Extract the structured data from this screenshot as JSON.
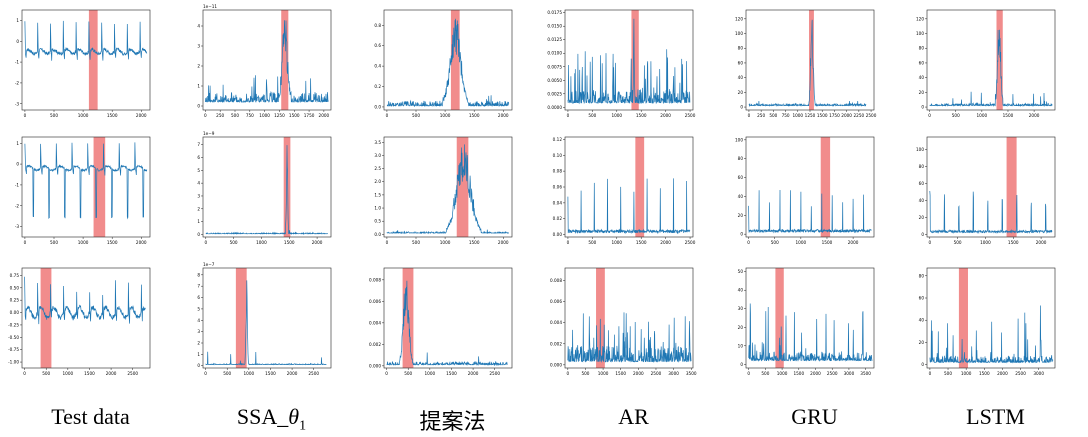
{
  "colors": {
    "line": "#1f77b4",
    "highlight": "#f08080",
    "axes": "#222222"
  },
  "column_labels": [
    "Test data",
    "SSA_θ1",
    "提案法",
    "AR",
    "GRU",
    "LSTM"
  ],
  "chart_data": [
    {
      "type": "line",
      "row": 0,
      "col": 0,
      "ylim": [
        -3.3,
        1.5
      ],
      "xticks": [
        0,
        500,
        1000,
        1500,
        2000
      ],
      "xlim": [
        -50,
        2150
      ],
      "yticks": [
        "1",
        "0",
        "-1",
        "-2",
        "-3"
      ],
      "ytick_values": [
        1,
        0,
        -1,
        -2,
        -3
      ],
      "exp": "",
      "highlight": [
        1100,
        1250
      ],
      "signal": {
        "kind": "ecg",
        "n": 2100,
        "base": -0.5,
        "period": 220,
        "amp": 1.4,
        "noise": 0.08,
        "dip": -0.8
      }
    },
    {
      "type": "line",
      "row": 0,
      "col": 1,
      "ylim": [
        -0.2,
        4.8
      ],
      "xticks": [
        0,
        250,
        500,
        750,
        1000,
        1250,
        1500,
        1750,
        2000
      ],
      "xlim": [
        -40,
        2120
      ],
      "yticks": [
        "4",
        "3",
        "2",
        "1",
        "0"
      ],
      "ytick_values": [
        4,
        3,
        2,
        1,
        0
      ],
      "exp": "1e−11",
      "highlight": [
        1280,
        1400
      ],
      "signal": {
        "kind": "score",
        "n": 2080,
        "base": 0.2,
        "noise": 0.5,
        "spikes": 12,
        "spikeH": 1.2,
        "peakAt": 1340,
        "peakH": 4.6,
        "peakW": 40
      }
    },
    {
      "type": "line",
      "row": 0,
      "col": 2,
      "ylim": [
        -0.03,
        0.95
      ],
      "xticks": [
        0,
        500,
        1000,
        1500,
        2000
      ],
      "xlim": [
        -50,
        2150
      ],
      "yticks": [
        "0.8",
        "0.6",
        "0.4",
        "0.2",
        "0.0"
      ],
      "ytick_values": [
        0.8,
        0.6,
        0.4,
        0.2,
        0.0
      ],
      "exp": "",
      "highlight": [
        1100,
        1250
      ],
      "signal": {
        "kind": "score",
        "n": 2100,
        "base": 0.01,
        "noise": 0.05,
        "spikes": 6,
        "spikeH": 0.1,
        "peakAt": 1180,
        "peakH": 0.9,
        "peakW": 90
      }
    },
    {
      "type": "line",
      "row": 0,
      "col": 3,
      "ylim": [
        -0.0005,
        0.018
      ],
      "xticks": [
        0,
        500,
        1000,
        1500,
        2000,
        2500
      ],
      "xlim": [
        -60,
        2560
      ],
      "yticks": [
        "0.0175",
        "0.0150",
        "0.0125",
        "0.0100",
        "0.0075",
        "0.0050",
        "0.0025",
        "0.0000"
      ],
      "ytick_values": [
        0.0175,
        0.015,
        0.0125,
        0.01,
        0.0075,
        0.005,
        0.0025,
        0
      ],
      "exp": "",
      "highlight": [
        1300,
        1450
      ],
      "signal": {
        "kind": "score",
        "n": 2500,
        "base": 0.0008,
        "noise": 0.0025,
        "spikes": 40,
        "spikeH": 0.009,
        "peakAt": 1350,
        "peakH": 0.016,
        "peakW": 6
      }
    },
    {
      "type": "line",
      "row": 0,
      "col": 4,
      "ylim": [
        -4,
        132
      ],
      "xticks": [
        0,
        250,
        500,
        750,
        1000,
        1250,
        1500,
        1750,
        2000,
        2250,
        2500
      ],
      "xlim": [
        -60,
        2560
      ],
      "yticks": [
        "120",
        "100",
        "80",
        "60",
        "40",
        "20",
        "0"
      ],
      "ytick_values": [
        120,
        100,
        80,
        60,
        40,
        20,
        0
      ],
      "exp": "",
      "highlight": [
        1230,
        1330
      ],
      "signal": {
        "kind": "score",
        "n": 2400,
        "base": 2,
        "noise": 3,
        "spikes": 10,
        "spikeH": 8,
        "peakAt": 1290,
        "peakH": 128,
        "peakW": 25
      }
    },
    {
      "type": "line",
      "row": 0,
      "col": 5,
      "ylim": [
        -4,
        132
      ],
      "xticks": [
        0,
        500,
        1000,
        1500,
        2000
      ],
      "xlim": [
        -50,
        2400
      ],
      "yticks": [
        "120",
        "100",
        "80",
        "60",
        "40",
        "20",
        "0"
      ],
      "ytick_values": [
        120,
        100,
        80,
        60,
        40,
        20,
        0
      ],
      "exp": "",
      "highlight": [
        1280,
        1400
      ],
      "signal": {
        "kind": "score",
        "n": 2350,
        "base": 2,
        "noise": 3,
        "spikes": 10,
        "spikeH": 18,
        "peakAt": 1330,
        "peakH": 128,
        "peakW": 30
      }
    },
    {
      "type": "line",
      "row": 1,
      "col": 0,
      "ylim": [
        -3.5,
        1.3
      ],
      "xticks": [
        0,
        500,
        1000,
        1500,
        2000
      ],
      "xlim": [
        -50,
        2150
      ],
      "yticks": [
        "1",
        "0",
        "-1",
        "-2",
        "-3"
      ],
      "ytick_values": [
        1,
        0,
        -1,
        -2,
        -3
      ],
      "exp": "",
      "highlight": [
        1180,
        1380
      ],
      "signal": {
        "kind": "ecg2",
        "n": 2100,
        "base": -0.2,
        "period": 270,
        "amp": 1.2,
        "noise": 0.05,
        "dip": -3.0
      }
    },
    {
      "type": "line",
      "row": 1,
      "col": 1,
      "ylim": [
        -0.2,
        7.6
      ],
      "xticks": [
        0,
        500,
        1000,
        1500,
        2000
      ],
      "xlim": [
        -50,
        2250
      ],
      "yticks": [
        "7",
        "6",
        "5",
        "4",
        "3",
        "2",
        "1",
        "0"
      ],
      "ytick_values": [
        7,
        6,
        5,
        4,
        3,
        2,
        1,
        0
      ],
      "exp": "1e−9",
      "highlight": [
        1400,
        1520
      ],
      "signal": {
        "kind": "score",
        "n": 2200,
        "base": 0.05,
        "noise": 0.08,
        "spikes": 6,
        "spikeH": 0.4,
        "peakAt": 1460,
        "peakH": 7.0,
        "peakW": 12
      }
    },
    {
      "type": "line",
      "row": 1,
      "col": 2,
      "ylim": [
        -0.1,
        3.7
      ],
      "xticks": [
        0,
        500,
        1000,
        1500,
        2000
      ],
      "xlim": [
        -50,
        2150
      ],
      "yticks": [
        "3.5",
        "3.0",
        "2.5",
        "2.0",
        "1.5",
        "1.0",
        "0.5",
        "0.0"
      ],
      "ytick_values": [
        3.5,
        3.0,
        2.5,
        2.0,
        1.5,
        1.0,
        0.5,
        0.0
      ],
      "exp": "",
      "highlight": [
        1200,
        1400
      ],
      "signal": {
        "kind": "score",
        "n": 2100,
        "base": 0.05,
        "noise": 0.05,
        "spikes": 3,
        "spikeH": 0.2,
        "peakAt": 1320,
        "peakH": 3.4,
        "peakW": 120
      }
    },
    {
      "type": "line",
      "row": 1,
      "col": 3,
      "ylim": [
        -0.003,
        0.123
      ],
      "xticks": [
        0,
        500,
        1000,
        1500,
        2000,
        2500
      ],
      "xlim": [
        -60,
        2560
      ],
      "yticks": [
        "0.12",
        "0.10",
        "0.08",
        "0.06",
        "0.04",
        "0.02",
        "0.00"
      ],
      "ytick_values": [
        0.12,
        0.1,
        0.08,
        0.06,
        0.04,
        0.02,
        0.0
      ],
      "exp": "",
      "highlight": [
        1380,
        1560
      ],
      "signal": {
        "kind": "periodic",
        "n": 2500,
        "base": 0.002,
        "noise": 0.004,
        "period": 270,
        "peakH": 0.08,
        "spikeH": 0.07
      }
    },
    {
      "type": "line",
      "row": 1,
      "col": 4,
      "ylim": [
        -3,
        103
      ],
      "xticks": [
        0,
        500,
        1000,
        1500,
        2000
      ],
      "xlim": [
        -50,
        2400
      ],
      "yticks": [
        "100",
        "80",
        "60",
        "40",
        "20",
        "0"
      ],
      "ytick_values": [
        100,
        80,
        60,
        40,
        20,
        0
      ],
      "exp": "",
      "highlight": [
        1380,
        1560
      ],
      "signal": {
        "kind": "periodic",
        "n": 2350,
        "base": 2,
        "noise": 3,
        "period": 200,
        "peakH": 60,
        "spikeH": 45
      }
    },
    {
      "type": "line",
      "row": 1,
      "col": 5,
      "ylim": [
        -3,
        115
      ],
      "xticks": [
        0,
        500,
        1000,
        1500,
        2000
      ],
      "xlim": [
        -50,
        2250
      ],
      "yticks": [
        "100",
        "80",
        "60",
        "40",
        "20",
        "0"
      ],
      "ytick_values": [
        100,
        80,
        60,
        40,
        20,
        0
      ],
      "exp": "",
      "highlight": [
        1380,
        1560
      ],
      "signal": {
        "kind": "periodic",
        "n": 2200,
        "base": 2,
        "noise": 3,
        "period": 260,
        "peakH": 95,
        "spikeH": 50
      }
    },
    {
      "type": "line",
      "row": 2,
      "col": 0,
      "ylim": [
        -1.12,
        0.9
      ],
      "xticks": [
        0,
        500,
        1000,
        1500,
        2000,
        2500
      ],
      "xlim": [
        -60,
        2900
      ],
      "yticks": [
        "0.75",
        "0.50",
        "0.25",
        "0.00",
        "-0.25",
        "-0.50",
        "-0.75",
        "-1.00"
      ],
      "ytick_values": [
        0.75,
        0.5,
        0.25,
        0,
        -0.25,
        -0.5,
        -0.75,
        -1.0
      ],
      "exp": "",
      "highlight": [
        370,
        620
      ],
      "signal": {
        "kind": "ecg3",
        "n": 2800,
        "base": 0.0,
        "period": 300,
        "amp": 0.7,
        "noise": 0.05,
        "dip": -1.05
      }
    },
    {
      "type": "line",
      "row": 2,
      "col": 1,
      "ylim": [
        -0.2,
        8.6
      ],
      "xticks": [
        0,
        500,
        1000,
        1500,
        2000,
        2500
      ],
      "xlim": [
        -60,
        2900
      ],
      "yticks": [
        "8",
        "7",
        "6",
        "5",
        "4",
        "3",
        "2",
        "1",
        "0"
      ],
      "ytick_values": [
        8,
        7,
        6,
        5,
        4,
        3,
        2,
        1,
        0
      ],
      "exp": "1e−7",
      "highlight": [
        700,
        950
      ],
      "signal": {
        "kind": "score",
        "n": 2800,
        "base": 0.1,
        "noise": 0.08,
        "spikes": 4,
        "spikeH": 1.6,
        "peakAt": 950,
        "peakH": 8.0,
        "peakW": 15
      }
    },
    {
      "type": "line",
      "row": 2,
      "col": 2,
      "ylim": [
        -0.0002,
        0.0091
      ],
      "xticks": [
        0,
        500,
        1000,
        1500,
        2000,
        2500
      ],
      "xlim": [
        -60,
        2900
      ],
      "yticks": [
        "0.008",
        "0.006",
        "0.004",
        "0.002",
        "0.000"
      ],
      "ytick_values": [
        0.008,
        0.006,
        0.004,
        0.002,
        0.0
      ],
      "exp": "",
      "highlight": [
        370,
        620
      ],
      "signal": {
        "kind": "score",
        "n": 2800,
        "base": 0.0001,
        "noise": 0.0003,
        "spikes": 4,
        "spikeH": 0.0012,
        "peakAt": 450,
        "peakH": 0.0085,
        "peakW": 60
      }
    },
    {
      "type": "line",
      "row": 2,
      "col": 3,
      "ylim": [
        -0.0003,
        0.0092
      ],
      "xticks": [
        0,
        500,
        1000,
        1500,
        2000,
        2500,
        3000,
        3500
      ],
      "xlim": [
        -80,
        3550
      ],
      "yticks": [
        "0.008",
        "0.006",
        "0.004",
        "0.002",
        "0.000"
      ],
      "ytick_values": [
        0.008,
        0.006,
        0.004,
        0.002,
        0.0
      ],
      "exp": "",
      "highlight": [
        800,
        1050
      ],
      "signal": {
        "kind": "score",
        "n": 3500,
        "base": 0.0003,
        "noise": 0.0015,
        "spikes": 40,
        "spikeH": 0.004,
        "peakAt": 3450,
        "peakH": 0.006,
        "peakW": 4
      }
    },
    {
      "type": "line",
      "row": 2,
      "col": 4,
      "ylim": [
        -2,
        52
      ],
      "xticks": [
        0,
        500,
        1000,
        1500,
        2000,
        2500,
        3000,
        3500
      ],
      "xlim": [
        -80,
        3750
      ],
      "yticks": [
        "50",
        "40",
        "30",
        "20",
        "10",
        "0"
      ],
      "ytick_values": [
        50,
        40,
        30,
        20,
        10,
        0
      ],
      "exp": "",
      "highlight": [
        800,
        1050
      ],
      "signal": {
        "kind": "score",
        "n": 3700,
        "base": 2,
        "noise": 5,
        "spikes": 30,
        "spikeH": 28,
        "peakAt": 50,
        "peakH": 42,
        "peakW": 4
      }
    },
    {
      "type": "line",
      "row": 2,
      "col": 5,
      "ylim": [
        -3,
        87
      ],
      "xticks": [
        0,
        500,
        1000,
        1500,
        2000,
        2500,
        3000
      ],
      "xlim": [
        -80,
        3450
      ],
      "yticks": [
        "80",
        "60",
        "40",
        "20",
        "0"
      ],
      "ytick_values": [
        80,
        60,
        40,
        20,
        0
      ],
      "exp": "",
      "highlight": [
        800,
        1050
      ],
      "signal": {
        "kind": "score",
        "n": 3400,
        "base": 2,
        "noise": 6,
        "spikes": 30,
        "spikeH": 45,
        "peakAt": 3050,
        "peakH": 82,
        "peakW": 4
      }
    }
  ]
}
